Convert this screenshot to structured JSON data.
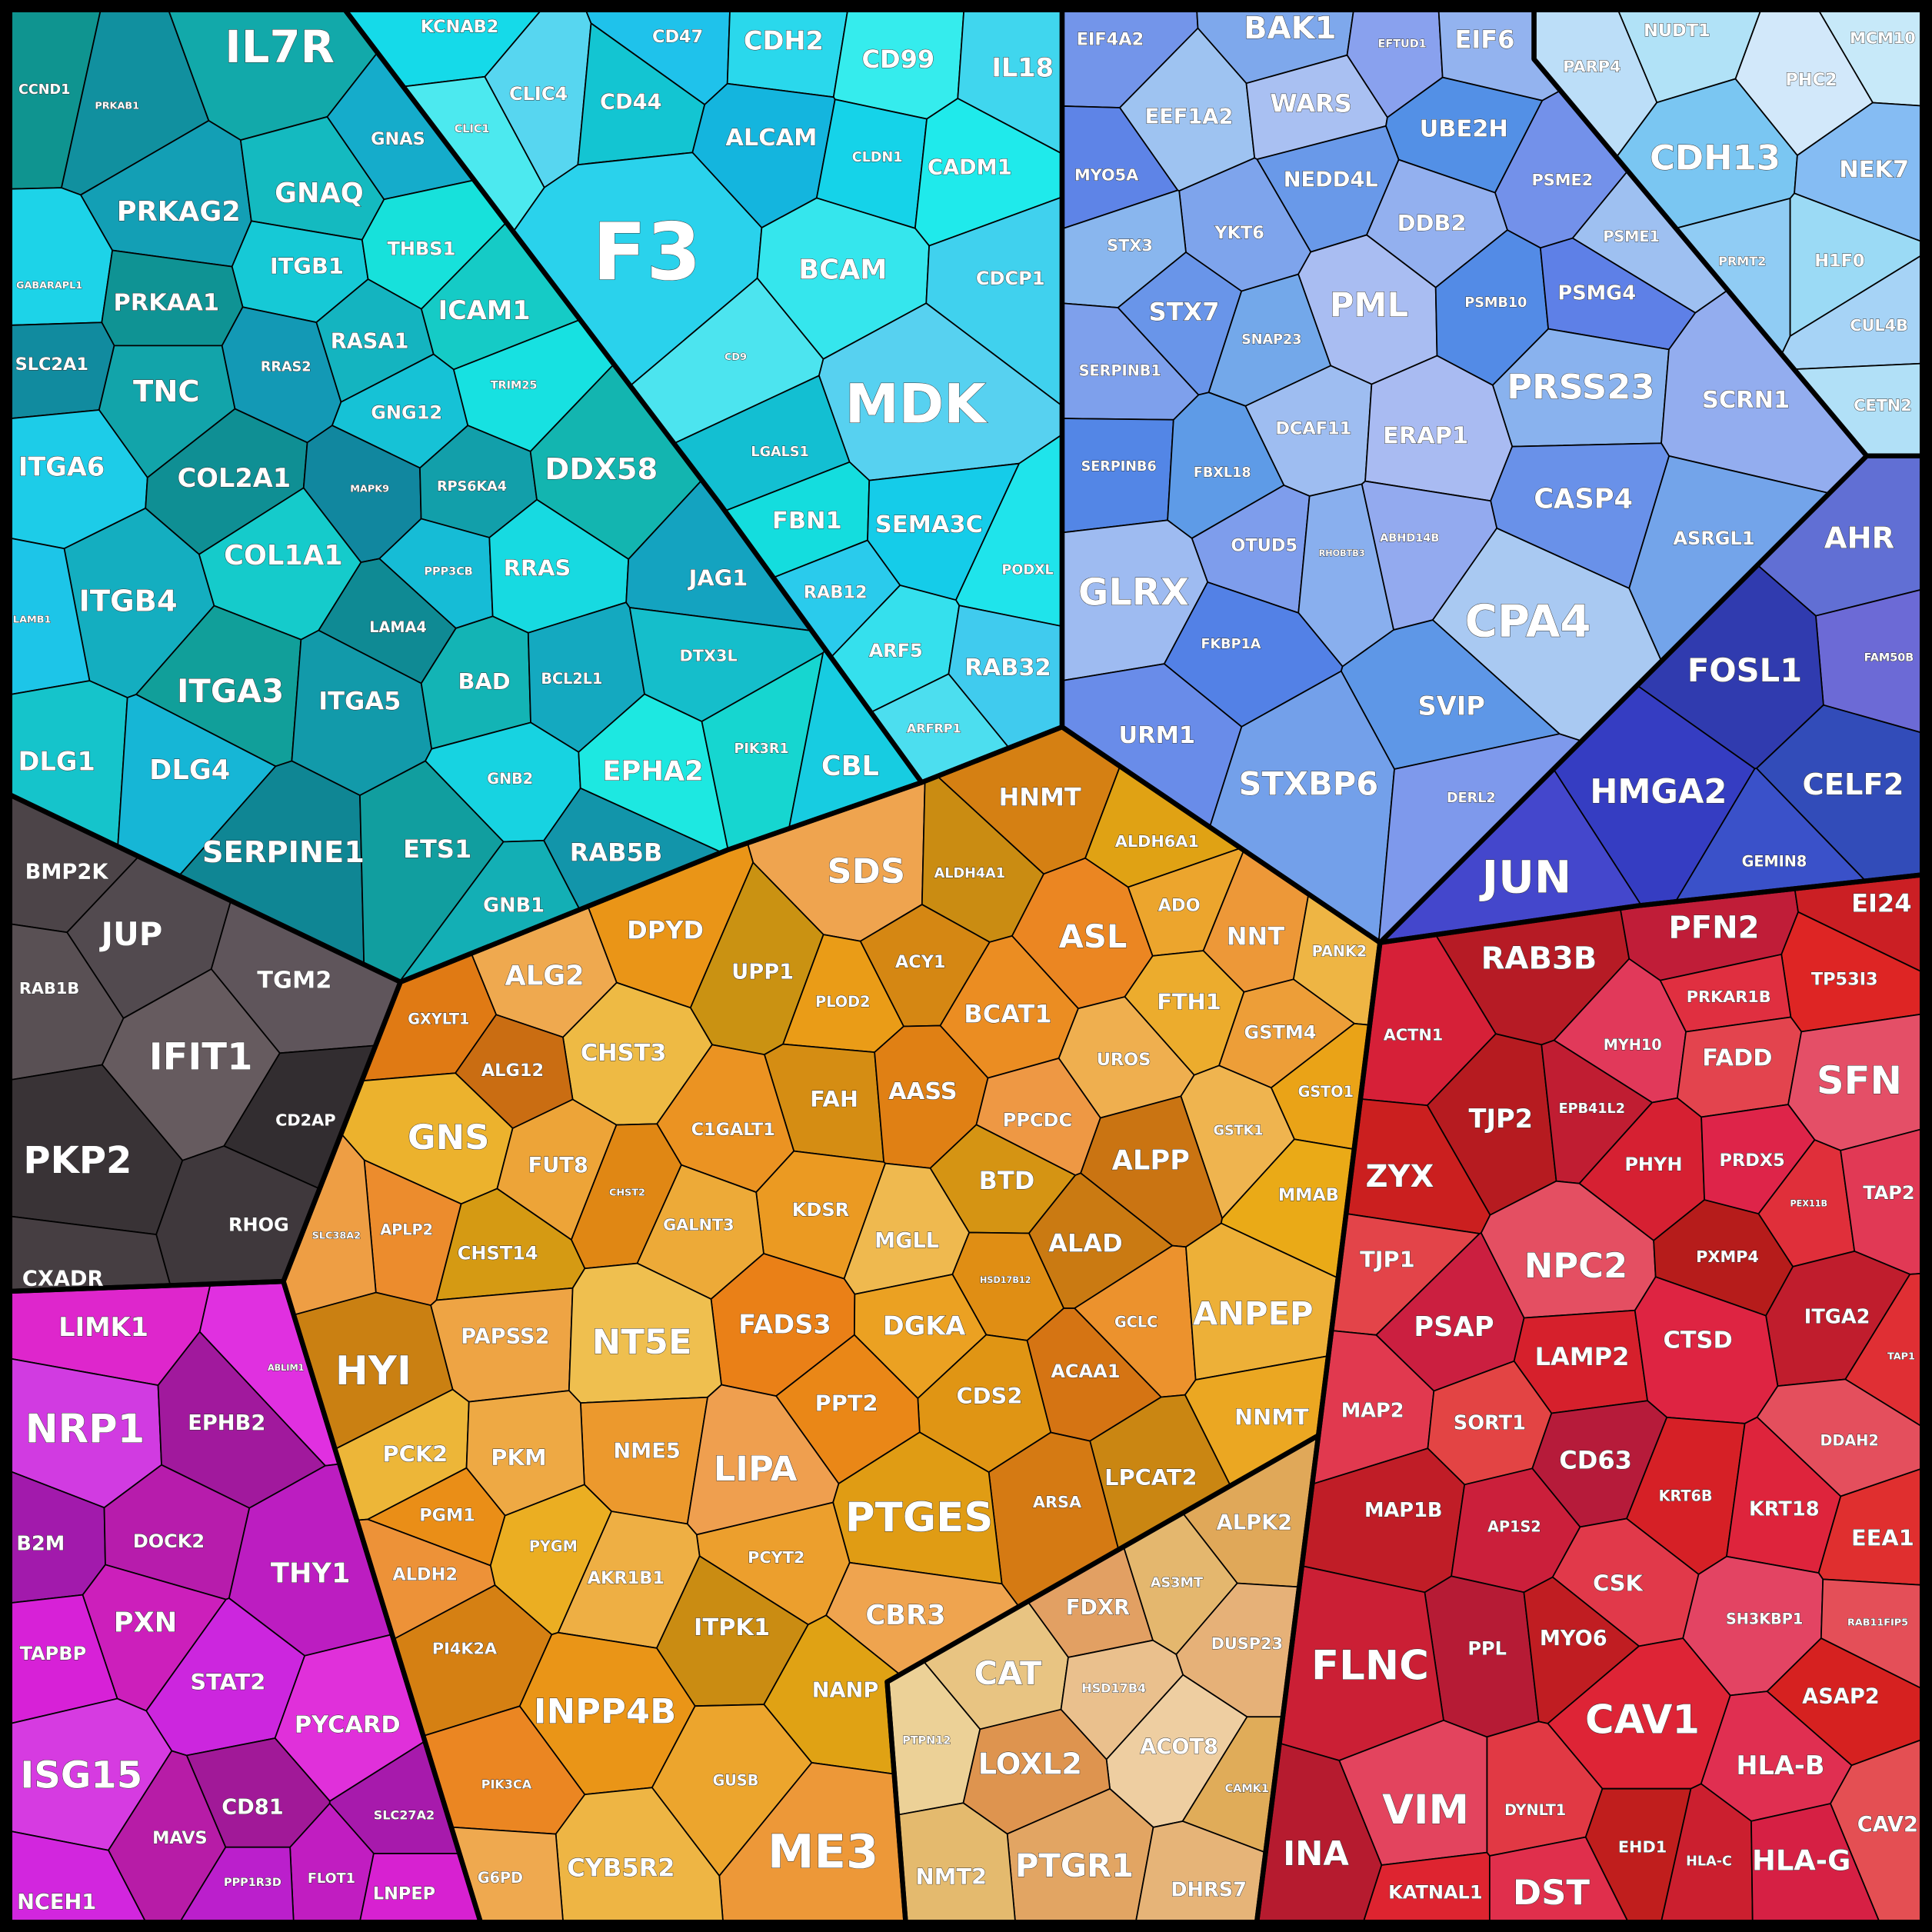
{
  "chart_data": {
    "type": "voronoi_treemap",
    "groups": [
      {
        "color": "#14b4c0",
        "cells": [
          "CCND1",
          "PRKAB1",
          "IL7R",
          "PRKAG2",
          "GNAQ",
          "GNAS",
          "ITGB1",
          "THBS1",
          "GABARAPL1",
          "PRKAA1",
          "SLC2A1",
          "TNC",
          "RRAS2",
          "RASA1",
          "ICAM1",
          "GNG12",
          "TRIM25",
          "ITGA6",
          "COL2A1",
          "MAPK9",
          "RPS6KA4",
          "DDX58",
          "ITGB4",
          "COL1A1",
          "PPP3CB",
          "RRAS",
          "LAMB1",
          "LAMA4",
          "ITGA3",
          "ITGA5",
          "BAD",
          "BCL2L1",
          "DLG1",
          "DLG4",
          "GNB2",
          "EPHA2",
          "SERPINE1",
          "ETS1",
          "RAB5B",
          "GNB1",
          "JAG1",
          "DTX3L",
          "PIK3R1",
          "CBL"
        ]
      },
      {
        "color": "#2ad8ec",
        "cells": [
          "KCNAB2",
          "CD47",
          "CDH2",
          "CD99",
          "IL18",
          "CLIC1",
          "CLIC4",
          "CD44",
          "ALCAM",
          "CLDN1",
          "CADM1",
          "F3",
          "BCAM",
          "CDCP1",
          "CD9",
          "MDK",
          "LGALS1",
          "FBN1",
          "SEMA3C",
          "PODXL",
          "RAB12",
          "ARF5",
          "RAB32",
          "ARFRP1"
        ]
      },
      {
        "color": "#4c4448",
        "cells": [
          "BMP2K",
          "JUP",
          "RAB1B",
          "TGM2",
          "IFIT1",
          "CD2AP",
          "PKP2",
          "RHOG",
          "CXADR"
        ]
      },
      {
        "color": "#cc1fcc",
        "cells": [
          "LIMK1",
          "ABLIM1",
          "NRP1",
          "EPHB2",
          "B2M",
          "DOCK2",
          "THY1",
          "PXN",
          "TAPBP",
          "STAT2",
          "PYCARD",
          "ISG15",
          "CD81",
          "SLC27A2",
          "MAVS",
          "FLOT1",
          "PPP1R3D",
          "LNPEP",
          "NCEH1"
        ]
      },
      {
        "color": "#eb9a22",
        "cells": [
          "SDS",
          "ALDH4A1",
          "HNMT",
          "ALDH6A1",
          "DPYD",
          "ASL",
          "ADO",
          "NNT",
          "PANK2",
          "ALG2",
          "UPP1",
          "ACY1",
          "GXYLT1",
          "PLOD2",
          "BCAT1",
          "FTH1",
          "GSTM4",
          "CHST3",
          "UROS",
          "ALG12",
          "FAH",
          "AASS",
          "GSTO1",
          "C1GALT1",
          "GNS",
          "FUT8",
          "PPCDC",
          "GSTK1",
          "ALPP",
          "BTD",
          "CHST2",
          "MMAB",
          "KDSR",
          "APLP2",
          "GALNT3",
          "SLC38A2",
          "MGLL",
          "ALAD",
          "CHST14",
          "HSD17B12",
          "FADS3",
          "DGKA",
          "GCLC",
          "ANPEP",
          "PAPSS2",
          "NT5E",
          "HYI",
          "ACAA1",
          "CDS2",
          "PPT2",
          "NNMT",
          "NME5",
          "PCK2",
          "PKM",
          "LIPA",
          "LPCAT2",
          "ARSA",
          "PTGES",
          "PGM1",
          "PYGM",
          "PCYT2",
          "ALDH2",
          "AKR1B1",
          "CBR3",
          "ITPK1",
          "PI4K2A",
          "NANP",
          "INPP4B",
          "PIK3CA",
          "GUSB",
          "ME3",
          "CYB5R2",
          "G6PD"
        ]
      },
      {
        "color": "#e6b878",
        "cells": [
          "ALPK2",
          "FDXR",
          "AS3MT",
          "DUSP23",
          "CAT",
          "HSD17B4",
          "PTPN12",
          "ACOT8",
          "LOXL2",
          "CAMK1",
          "PTGR1",
          "NMT2",
          "DHRS7"
        ]
      },
      {
        "color": "#7ea4ec",
        "cells": [
          "EIF4A2",
          "BAK1",
          "EFTUD1",
          "EIF6",
          "EEF1A2",
          "WARS",
          "UBE2H",
          "MYO5A",
          "NEDD4L",
          "PSME2",
          "YKT6",
          "STX3",
          "DDB2",
          "PSME1",
          "PML",
          "PSMB10",
          "PSMG4",
          "STX7",
          "SNAP23",
          "SERPINB1",
          "PRSS23",
          "SCRN1",
          "DCAF11",
          "ERAP1",
          "SERPINB6",
          "FBXL18",
          "CASP4",
          "ASRGL1",
          "OTUD5",
          "RHOBTB3",
          "ABHD14B",
          "GLRX",
          "CPA4",
          "FKBP1A",
          "SVIP",
          "URM1",
          "STXBP6",
          "DERL2"
        ]
      },
      {
        "color": "#a6d6f6",
        "cells": [
          "NUDT1",
          "PARP4",
          "MCM10",
          "PHC2",
          "CDH13",
          "NEK7",
          "PRMT2",
          "H1F0",
          "CUL4B",
          "CETN2"
        ]
      },
      {
        "color": "#4450cc",
        "cells": [
          "AHR",
          "FAM50B",
          "FOSL1",
          "CELF2",
          "HMGA2",
          "GEMIN8",
          "JUN"
        ]
      },
      {
        "color": "#de2436",
        "cells": [
          "RAB3B",
          "PFN2",
          "EI24",
          "ACTN1",
          "TP53I3",
          "PRKAR1B",
          "MYH10",
          "FADD",
          "SFN",
          "TJP2",
          "EPB41L2",
          "ZYX",
          "PHYH",
          "PRDX5",
          "PEX11B",
          "TAP2",
          "TJP1",
          "NPC2",
          "PXMP4",
          "ITGA2",
          "PSAP",
          "LAMP2",
          "CTSD",
          "TAP1",
          "MAP2",
          "SORT1",
          "DDAH2",
          "CD63",
          "MAP1B",
          "AP1S2",
          "KRT6B",
          "KRT18",
          "EEA1",
          "CSK",
          "SH3KBP1",
          "RAB11FIP5",
          "PPL",
          "MYO6",
          "FLNC",
          "ASAP2",
          "CAV1",
          "HLA-B",
          "DYNLT1",
          "VIM",
          "CAV2",
          "INA",
          "EHD1",
          "HLA-C",
          "HLA-G",
          "KATNAL1",
          "DST"
        ]
      }
    ]
  }
}
